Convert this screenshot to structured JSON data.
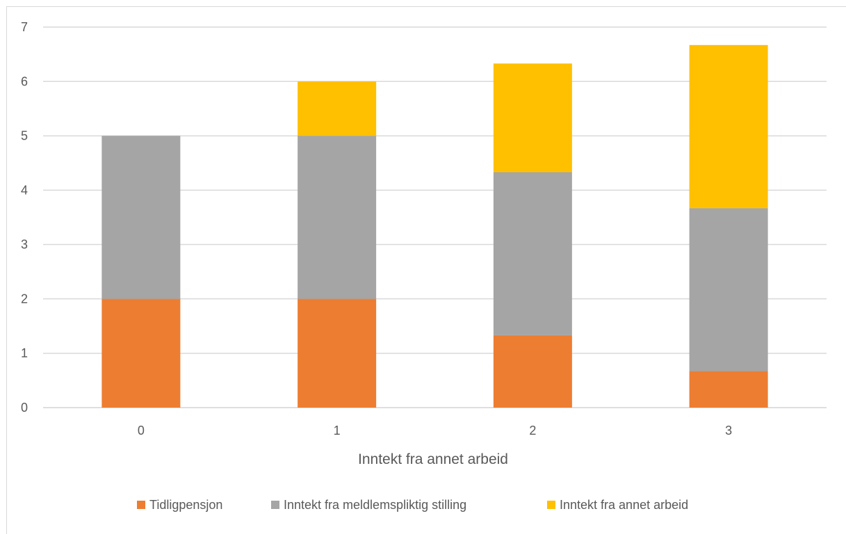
{
  "chart_data": {
    "type": "bar",
    "stacked": true,
    "categories": [
      "0",
      "1",
      "2",
      "3"
    ],
    "xlabel": "Inntekt fra annet arbeid",
    "ylabel": "",
    "ylim": [
      0,
      7
    ],
    "yticks": [
      "0",
      "1",
      "2",
      "3",
      "4",
      "5",
      "6",
      "7"
    ],
    "grid": true,
    "legend_position": "bottom",
    "series": [
      {
        "name": "Tidligpensjon",
        "color": "#ED7D31",
        "values": [
          2.0,
          2.0,
          1.33,
          0.67
        ]
      },
      {
        "name": "Inntekt fra meldlemspliktig stilling",
        "color": "#A5A5A5",
        "values": [
          3.0,
          3.0,
          3.0,
          3.0
        ]
      },
      {
        "name": "Inntekt fra annet arbeid",
        "color": "#FFC000",
        "values": [
          0.0,
          1.0,
          2.0,
          3.0
        ]
      }
    ]
  }
}
